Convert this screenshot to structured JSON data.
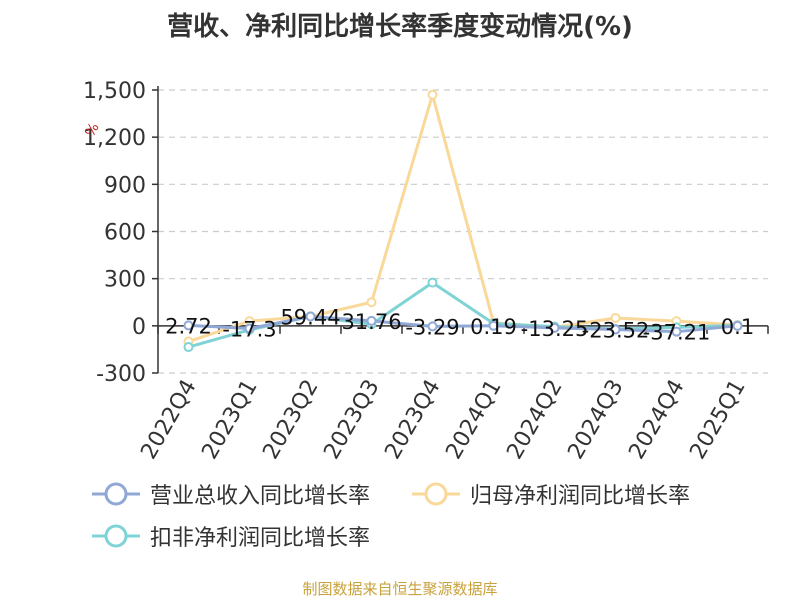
{
  "title": "营收、净利同比增长率季度变动情况(%)",
  "source": "制图数据来自恒生聚源数据库",
  "colors": {
    "revenue": "#8fa8d6",
    "net_profit": "#f9d89a",
    "deducted_profit": "#7fd3d4",
    "axis": "#333333",
    "grid": "#cccccc"
  },
  "chart_data": {
    "type": "line",
    "title": "营收、净利同比增长率季度变动情况(%)",
    "y_unit": "%",
    "categories": [
      "2022Q4",
      "2023Q1",
      "2023Q2",
      "2023Q3",
      "2023Q4",
      "2024Q1",
      "2024Q2",
      "2024Q3",
      "2024Q4",
      "2025Q1"
    ],
    "yticks": [
      -300,
      0,
      300,
      600,
      900,
      1200,
      1500
    ],
    "yticks_labels": [
      "-300",
      "0",
      "300",
      "600",
      "900",
      "1,200",
      "1,500"
    ],
    "ylim": [
      -300,
      1500
    ],
    "grid": true,
    "legend_position": "bottom",
    "series": [
      {
        "name": "营业总收入同比增长率",
        "key": "revenue",
        "values": [
          2.72,
          -17.3,
          59.44,
          31.76,
          -3.29,
          0.19,
          -13.25,
          -23.52,
          -37.21,
          0.1
        ],
        "labels": [
          "2.72",
          "-17.3",
          "59.44",
          "31.76",
          "-3.29",
          "0.19",
          "-13.25",
          "-23.52",
          "-37.21",
          "0.1"
        ]
      },
      {
        "name": "归母净利润同比增长率",
        "key": "net_profit",
        "values": [
          -100,
          30,
          60,
          150,
          1470,
          20,
          -10,
          50,
          30,
          5
        ]
      },
      {
        "name": "扣非净利润同比增长率",
        "key": "deducted_profit",
        "values": [
          -135,
          -25,
          60,
          10,
          275,
          15,
          -5,
          -20,
          -10,
          3
        ]
      }
    ]
  }
}
